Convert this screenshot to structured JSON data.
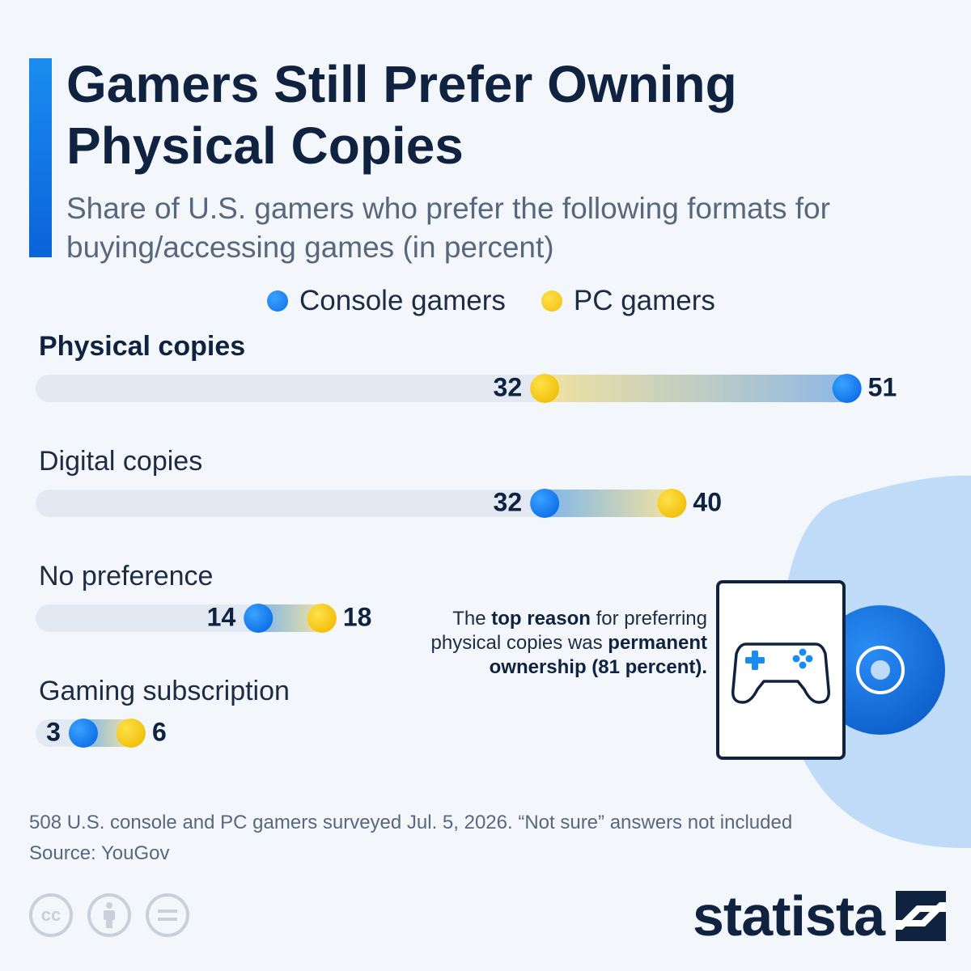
{
  "title": "Gamers Still Prefer Owning Physical Copies",
  "subtitle": "Share of U.S. gamers who prefer the following formats for buying/accessing games (in percent)",
  "legend": {
    "console_label": "Console gamers",
    "pc_label": "PC gamers"
  },
  "colors": {
    "console": "#0d6fe8",
    "pc": "#f1bf0a",
    "track": "#e3e9f2",
    "title": "#0f2240",
    "accent": "#1a8cf0"
  },
  "chart_data": {
    "type": "dot-range",
    "title": "Gamers Still Prefer Owning Physical Copies",
    "subtitle": "Share of U.S. gamers who prefer the following formats for buying/accessing games (in percent)",
    "xlim": [
      0,
      53
    ],
    "categories": [
      "Physical copies",
      "Digital copies",
      "No preference",
      "Gaming subscription"
    ],
    "series": [
      {
        "name": "Console gamers",
        "values": [
          51,
          32,
          14,
          3
        ]
      },
      {
        "name": "PC gamers",
        "values": [
          32,
          40,
          18,
          6
        ]
      }
    ],
    "emphasized_category": "Physical copies"
  },
  "annotation": {
    "part1": "The ",
    "bold1": "top reason",
    "part2": " for preferring physical copies was ",
    "bold2": "permanent ownership (81 percent)."
  },
  "footnote": "508 U.S. console and PC gamers surveyed Jul. 5, 2026. “Not sure” answers not included",
  "source": "Source: YouGov",
  "license_icons": [
    "creative-commons-icon",
    "attribution-icon",
    "no-derivatives-icon"
  ],
  "cc_label": "cc",
  "brand": "statista"
}
